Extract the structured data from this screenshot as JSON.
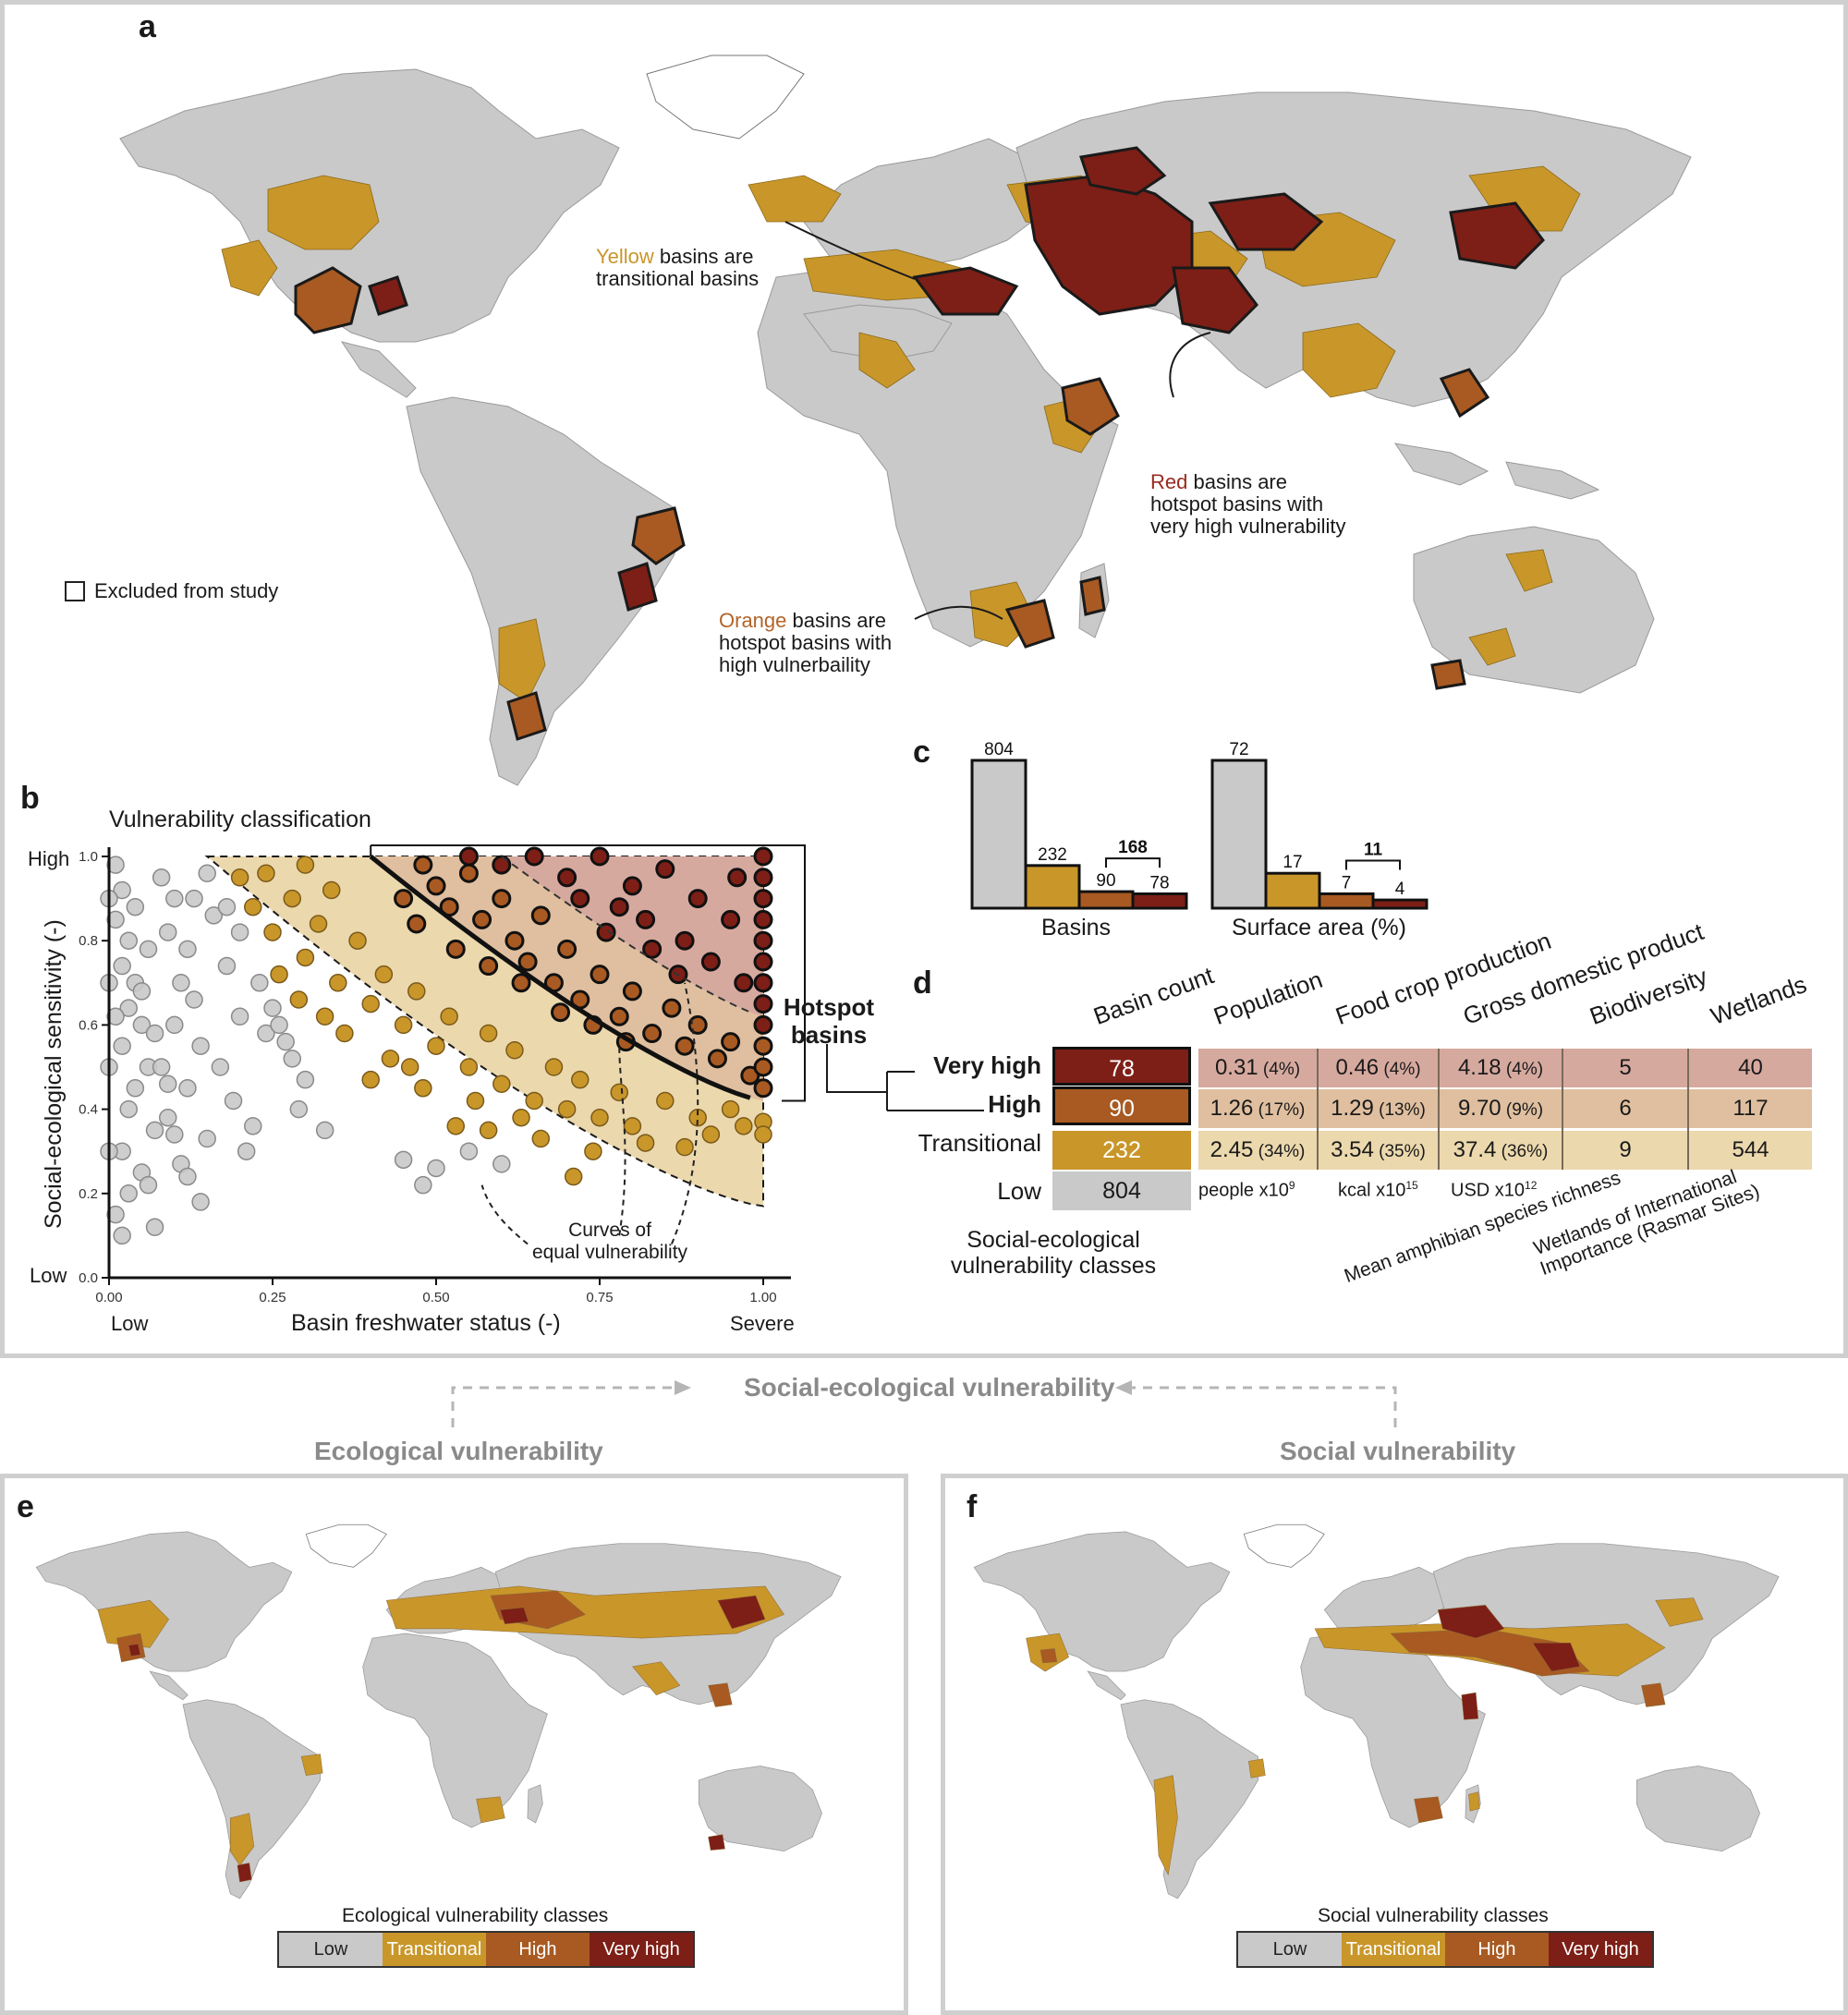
{
  "panels": {
    "a": "a",
    "b": "b",
    "c": "c",
    "d": "d",
    "e": "e",
    "f": "f"
  },
  "map_a": {
    "excluded_label": "Excluded from study",
    "annotations": {
      "yellow_word": "Yellow",
      "yellow_rest_1": "basins are",
      "yellow_rest_2": "transitional basins",
      "red_word": "Red",
      "red_rest_1": "basins are",
      "red_rest_2": "hotspot basins with",
      "red_rest_3": "very high vulnerability",
      "orange_word": "Orange",
      "orange_rest_1": "basins are",
      "orange_rest_2": "hotspot basins with",
      "orange_rest_3": "high vulnerbaility"
    },
    "colors": {
      "low": "#c9c9c9",
      "transitional": "#c9962a",
      "high": "#a85a22",
      "very_high": "#7d1f16",
      "yellow_text": "#c9962a",
      "orange_text": "#b2642a",
      "red_text": "#9a2a1e"
    }
  },
  "chart_data": {
    "type": "scatter",
    "title": "Vulnerability classification",
    "xlabel": "Basin freshwater status (-)",
    "ylabel": "Social-ecological sensitivity (-)",
    "xlim": [
      0.0,
      1.0
    ],
    "ylim": [
      0.0,
      1.0
    ],
    "x_ticks": [
      "0.00",
      "0.25",
      "0.50",
      "0.75",
      "1.00"
    ],
    "y_ticks": [
      "0.0",
      "0.2",
      "0.4",
      "0.6",
      "0.8",
      "1.0"
    ],
    "x_end_labels": [
      "Low",
      "Severe"
    ],
    "y_end_labels": [
      "Low",
      "High"
    ],
    "hotspot_label": "Hotspot basins",
    "curve_label_1": "Curves of",
    "curve_label_2": "equal vulnerability",
    "series": [
      {
        "name": "Low",
        "color": "#c9c9c9",
        "points": [
          [
            0.01,
            0.98
          ],
          [
            0.02,
            0.92
          ],
          [
            0.01,
            0.85
          ],
          [
            0.03,
            0.8
          ],
          [
            0.02,
            0.74
          ],
          [
            0.04,
            0.7
          ],
          [
            0.03,
            0.64
          ],
          [
            0.05,
            0.6
          ],
          [
            0.02,
            0.55
          ],
          [
            0.06,
            0.5
          ],
          [
            0.04,
            0.45
          ],
          [
            0.03,
            0.4
          ],
          [
            0.07,
            0.35
          ],
          [
            0.02,
            0.3
          ],
          [
            0.05,
            0.25
          ],
          [
            0.03,
            0.2
          ],
          [
            0.01,
            0.15
          ],
          [
            0.02,
            0.1
          ],
          [
            0.08,
            0.95
          ],
          [
            0.1,
            0.9
          ],
          [
            0.09,
            0.82
          ],
          [
            0.12,
            0.78
          ],
          [
            0.11,
            0.7
          ],
          [
            0.13,
            0.66
          ],
          [
            0.1,
            0.6
          ],
          [
            0.14,
            0.55
          ],
          [
            0.08,
            0.5
          ],
          [
            0.12,
            0.45
          ],
          [
            0.09,
            0.38
          ],
          [
            0.15,
            0.33
          ],
          [
            0.11,
            0.27
          ],
          [
            0.06,
            0.22
          ],
          [
            0.16,
            0.86
          ],
          [
            0.18,
            0.74
          ],
          [
            0.2,
            0.62
          ],
          [
            0.17,
            0.5
          ],
          [
            0.19,
            0.42
          ],
          [
            0.22,
            0.36
          ],
          [
            0.24,
            0.58
          ],
          [
            0.21,
            0.3
          ],
          [
            0.14,
            0.18
          ],
          [
            0.07,
            0.12
          ],
          [
            0.26,
            0.6
          ],
          [
            0.28,
            0.52
          ],
          [
            0.3,
            0.47
          ],
          [
            0.45,
            0.28
          ],
          [
            0.48,
            0.22
          ],
          [
            0.5,
            0.26
          ],
          [
            0.55,
            0.3
          ],
          [
            0.6,
            0.27
          ],
          [
            0.0,
            0.9
          ],
          [
            0.0,
            0.7
          ],
          [
            0.0,
            0.5
          ],
          [
            0.0,
            0.3
          ],
          [
            0.01,
            0.62
          ],
          [
            0.04,
            0.88
          ],
          [
            0.06,
            0.78
          ],
          [
            0.05,
            0.68
          ],
          [
            0.07,
            0.58
          ],
          [
            0.09,
            0.46
          ],
          [
            0.1,
            0.34
          ],
          [
            0.12,
            0.24
          ],
          [
            0.13,
            0.9
          ],
          [
            0.15,
            0.96
          ],
          [
            0.18,
            0.88
          ],
          [
            0.2,
            0.82
          ],
          [
            0.23,
            0.7
          ],
          [
            0.25,
            0.64
          ],
          [
            0.27,
            0.56
          ],
          [
            0.29,
            0.4
          ],
          [
            0.33,
            0.35
          ]
        ]
      },
      {
        "name": "Transitional",
        "color": "#c9962a",
        "points": [
          [
            0.2,
            0.95
          ],
          [
            0.22,
            0.88
          ],
          [
            0.25,
            0.82
          ],
          [
            0.28,
            0.9
          ],
          [
            0.3,
            0.76
          ],
          [
            0.32,
            0.84
          ],
          [
            0.35,
            0.7
          ],
          [
            0.38,
            0.8
          ],
          [
            0.4,
            0.65
          ],
          [
            0.42,
            0.72
          ],
          [
            0.45,
            0.6
          ],
          [
            0.47,
            0.68
          ],
          [
            0.5,
            0.55
          ],
          [
            0.52,
            0.62
          ],
          [
            0.55,
            0.5
          ],
          [
            0.58,
            0.58
          ],
          [
            0.6,
            0.46
          ],
          [
            0.62,
            0.54
          ],
          [
            0.65,
            0.42
          ],
          [
            0.68,
            0.5
          ],
          [
            0.7,
            0.4
          ],
          [
            0.72,
            0.47
          ],
          [
            0.75,
            0.38
          ],
          [
            0.78,
            0.44
          ],
          [
            0.8,
            0.36
          ],
          [
            0.85,
            0.42
          ],
          [
            0.9,
            0.38
          ],
          [
            0.95,
            0.4
          ],
          [
            1.0,
            0.37
          ],
          [
            1.0,
            0.34
          ],
          [
            0.97,
            0.36
          ],
          [
            0.36,
            0.58
          ],
          [
            0.33,
            0.62
          ],
          [
            0.43,
            0.52
          ],
          [
            0.48,
            0.45
          ],
          [
            0.56,
            0.42
          ],
          [
            0.63,
            0.38
          ],
          [
            0.66,
            0.33
          ],
          [
            0.74,
            0.3
          ],
          [
            0.82,
            0.32
          ],
          [
            0.88,
            0.31
          ],
          [
            0.92,
            0.34
          ],
          [
            0.26,
            0.72
          ],
          [
            0.24,
            0.96
          ],
          [
            0.3,
            0.98
          ],
          [
            0.34,
            0.92
          ],
          [
            0.29,
            0.66
          ],
          [
            0.4,
            0.47
          ],
          [
            0.58,
            0.35
          ],
          [
            0.71,
            0.24
          ],
          [
            0.53,
            0.36
          ],
          [
            0.46,
            0.5
          ]
        ]
      },
      {
        "name": "High",
        "color": "#a85a22",
        "points": [
          [
            0.48,
            0.98
          ],
          [
            0.5,
            0.93
          ],
          [
            0.52,
            0.88
          ],
          [
            0.55,
            0.96
          ],
          [
            0.57,
            0.85
          ],
          [
            0.6,
            0.9
          ],
          [
            0.62,
            0.8
          ],
          [
            0.64,
            0.75
          ],
          [
            0.66,
            0.86
          ],
          [
            0.68,
            0.7
          ],
          [
            0.7,
            0.78
          ],
          [
            0.72,
            0.66
          ],
          [
            0.75,
            0.72
          ],
          [
            0.78,
            0.62
          ],
          [
            0.8,
            0.68
          ],
          [
            0.83,
            0.58
          ],
          [
            0.86,
            0.64
          ],
          [
            0.88,
            0.55
          ],
          [
            0.9,
            0.6
          ],
          [
            0.93,
            0.52
          ],
          [
            0.95,
            0.56
          ],
          [
            0.98,
            0.48
          ],
          [
            1.0,
            0.45
          ],
          [
            1.0,
            0.5
          ],
          [
            1.0,
            0.55
          ],
          [
            0.45,
            0.9
          ],
          [
            0.47,
            0.84
          ],
          [
            0.53,
            0.78
          ],
          [
            0.58,
            0.74
          ],
          [
            0.63,
            0.7
          ],
          [
            0.69,
            0.63
          ],
          [
            0.74,
            0.6
          ],
          [
            0.79,
            0.56
          ]
        ]
      },
      {
        "name": "Very high",
        "color": "#7d1f16",
        "points": [
          [
            0.55,
            1.0
          ],
          [
            0.6,
            0.98
          ],
          [
            0.65,
            1.0
          ],
          [
            0.7,
            0.95
          ],
          [
            0.72,
            0.9
          ],
          [
            0.75,
            1.0
          ],
          [
            0.78,
            0.88
          ],
          [
            0.8,
            0.93
          ],
          [
            0.82,
            0.85
          ],
          [
            0.85,
            0.97
          ],
          [
            0.88,
            0.8
          ],
          [
            0.9,
            0.9
          ],
          [
            0.92,
            0.75
          ],
          [
            0.95,
            0.85
          ],
          [
            0.97,
            0.7
          ],
          [
            1.0,
            1.0
          ],
          [
            1.0,
            0.95
          ],
          [
            1.0,
            0.9
          ],
          [
            1.0,
            0.85
          ],
          [
            1.0,
            0.8
          ],
          [
            1.0,
            0.75
          ],
          [
            1.0,
            0.7
          ],
          [
            1.0,
            0.65
          ],
          [
            1.0,
            0.6
          ],
          [
            0.96,
            0.95
          ],
          [
            0.87,
            0.72
          ],
          [
            0.83,
            0.78
          ],
          [
            0.76,
            0.82
          ]
        ]
      }
    ]
  },
  "bars_c": {
    "basins": {
      "label": "Basins",
      "values": [
        804,
        232,
        90,
        78
      ],
      "bracket": "168"
    },
    "surface": {
      "label": "Surface area (%)",
      "values": [
        72,
        17,
        7,
        4
      ],
      "bracket": "11"
    }
  },
  "table_d": {
    "columns": [
      "Basin count",
      "Population",
      "Food crop production",
      "Gross domestic product",
      "Biodiversity",
      "Wetlands"
    ],
    "rows": [
      {
        "label": "Very high",
        "count": "78",
        "pop": "0.31",
        "pop_pct": "(4%)",
        "food": "0.46",
        "food_pct": "(4%)",
        "gdp": "4.18",
        "gdp_pct": "(4%)",
        "bio": "5",
        "wet": "40"
      },
      {
        "label": "High",
        "count": "90",
        "pop": "1.26",
        "pop_pct": "(17%)",
        "food": "1.29",
        "food_pct": "(13%)",
        "gdp": "9.70",
        "gdp_pct": "(9%)",
        "bio": "6",
        "wet": "117"
      },
      {
        "label": "Transitional",
        "count": "232",
        "pop": "2.45",
        "pop_pct": "(34%)",
        "food": "3.54",
        "food_pct": "(35%)",
        "gdp": "37.4",
        "gdp_pct": "(36%)",
        "bio": "9",
        "wet": "544"
      },
      {
        "label": "Low",
        "count": "804"
      }
    ],
    "units": {
      "pop": "people x10",
      "pop_exp": "9",
      "food": "kcal x10",
      "food_exp": "15",
      "gdp": "USD x10",
      "gdp_exp": "12"
    },
    "notes": {
      "bio": "Mean amphibian species richness",
      "wet_1": "Wetlands of International",
      "wet_2": "Importance (Rasmar Sites)"
    },
    "footer_1": "Social-ecological",
    "footer_2": "vulnerability classes"
  },
  "flow": {
    "top": "Social-ecological vulnerability",
    "left": "Ecological vulnerability",
    "right": "Social vulnerability"
  },
  "legend_e": {
    "title": "Ecological vulnerability classes",
    "items": [
      "Low",
      "Transitional",
      "High",
      "Very high"
    ]
  },
  "legend_f": {
    "title": "Social vulnerability classes",
    "items": [
      "Low",
      "Transitional",
      "High",
      "Very high"
    ]
  }
}
